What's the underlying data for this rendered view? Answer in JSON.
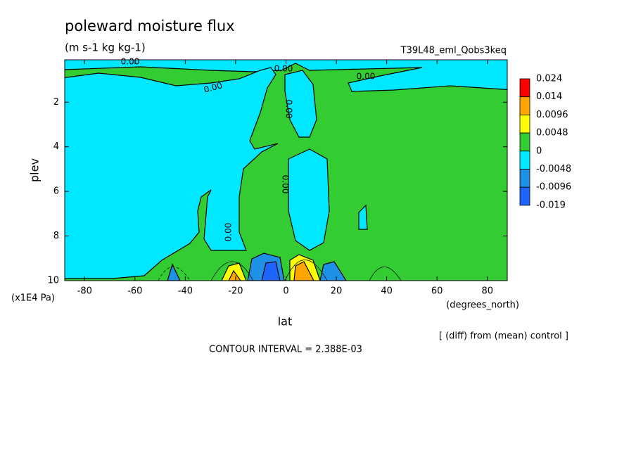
{
  "chart_data": {
    "type": "contour",
    "title": "poleward moisture flux",
    "subtitle": "(m s-1 kg kg-1)",
    "run_label": "T39L48_eml_Qobs3keq",
    "x_label": "lat",
    "x_units": "(degrees_north)",
    "y_label": "plev",
    "y_units": "(x1E4 Pa)",
    "xlim": [
      -87.9,
      87.9
    ],
    "xticks": [
      -80,
      -60,
      -40,
      -20,
      0,
      20,
      40,
      60,
      80
    ],
    "ylim": [
      10,
      0.1
    ],
    "yticks": [
      2,
      4,
      6,
      8,
      10
    ],
    "levels": [
      0.024,
      0.014,
      0.0096,
      0.0048,
      0,
      -0.0048,
      -0.0096,
      -0.019
    ],
    "colors": [
      "#ff0000",
      "#ffa500",
      "#ffff00",
      "#33cc33",
      "#00e8ff",
      "#1e90e6",
      "#1e64ff"
    ],
    "contour_labels": [
      "0.00",
      "0.00",
      "0.00",
      "0.00",
      "0.00",
      "0.00",
      "0.00"
    ],
    "note": "[ (diff) from (mean) control ]",
    "contour_interval": "CONTOUR INTERVAL = 2.388E-03"
  }
}
